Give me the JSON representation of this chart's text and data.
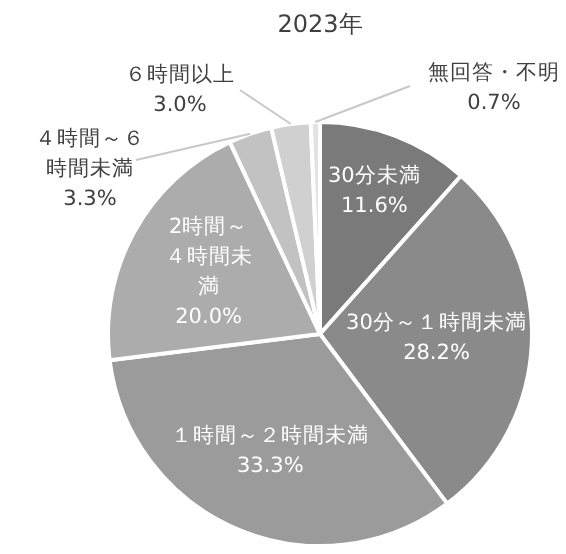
{
  "chart_data": {
    "type": "pie",
    "title": "2023年",
    "categories": [
      "30分未満",
      "30分～１時間未満",
      "１時間～２時間未満",
      "2時間～４時間未満",
      "４時間～６時間未満",
      "６時間以上",
      "無回答・不明"
    ],
    "values": [
      11.6,
      28.2,
      33.3,
      20.0,
      3.3,
      3.0,
      0.7
    ],
    "colors": [
      "#7a7a7a",
      "#8a8a8a",
      "#9b9b9b",
      "#acacac",
      "#c2c2c2",
      "#d0d0d0",
      "#e2e2e2"
    ],
    "value_labels": [
      "11.6%",
      "28.2%",
      "33.3%",
      "20.0%",
      "3.3%",
      "3.0%",
      "0.7%"
    ],
    "legend": false
  }
}
